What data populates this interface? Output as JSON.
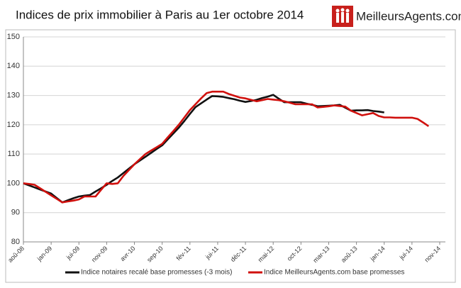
{
  "header": {
    "title": "Indices de prix immobilier à Paris au 1er octobre 2014",
    "logo": "MeilleursAgents.com"
  },
  "chart_data": {
    "type": "line",
    "categories": [
      "aoû-08",
      null,
      null,
      null,
      null,
      "jan-09",
      null,
      null,
      null,
      null,
      "jui-09",
      null,
      null,
      null,
      null,
      "nov-09",
      null,
      null,
      null,
      null,
      "avr-10",
      null,
      null,
      null,
      null,
      "sep-10",
      null,
      null,
      null,
      null,
      "fév-11",
      null,
      null,
      null,
      null,
      "jui-11",
      null,
      null,
      null,
      null,
      "déc-11",
      null,
      null,
      null,
      null,
      "mai-12",
      null,
      null,
      null,
      null,
      "oct-12",
      null,
      null,
      null,
      null,
      "mar-13",
      null,
      null,
      null,
      null,
      "aoû-13",
      null,
      null,
      null,
      null,
      "jan-14",
      null,
      null,
      null,
      null,
      "jui-14",
      null,
      null,
      null,
      null,
      "nov-14"
    ],
    "series": [
      {
        "name": "Indice notaires recalé base promesses (-3 mois)",
        "color": "#111111",
        "values": [
          100,
          99.3,
          98.6,
          97.9,
          97.2,
          96.5,
          95,
          93.5,
          94.2,
          94.9,
          95.5,
          95.8,
          96,
          97.2,
          98.3,
          99.5,
          100.8,
          102,
          103.5,
          105,
          106.5,
          107.8,
          109.1,
          110.4,
          111.7,
          113,
          115,
          117,
          119,
          121.3,
          123.7,
          126,
          127.3,
          128.6,
          129.8,
          129.7,
          129.5,
          129.1,
          128.7,
          128.2,
          127.8,
          128.1,
          128.5,
          129.1,
          129.6,
          130.2,
          128.9,
          127.7,
          127.7,
          127.7,
          127.7,
          127.2,
          126.8,
          126.3,
          126.4,
          126.5,
          126.6,
          126.8,
          125.8,
          124.8,
          124.9,
          124.9,
          125,
          124.7,
          124.5,
          124.2,
          null,
          null,
          null,
          null,
          null,
          null,
          null,
          null,
          null,
          null
        ]
      },
      {
        "name": "Indice MeilleursAgents.com base promesses",
        "color": "#d0100d",
        "values": [
          100,
          99.8,
          99.5,
          98.3,
          97.1,
          95.9,
          94.7,
          93.5,
          93.8,
          94.1,
          94.5,
          95.5,
          95.5,
          95.5,
          97.8,
          100,
          99.8,
          100,
          102.5,
          104.5,
          106.5,
          108.3,
          110,
          111.2,
          112.3,
          113.5,
          115.7,
          117.8,
          120,
          122.5,
          125,
          127,
          129,
          130.8,
          131.3,
          131.3,
          131.3,
          130.5,
          129.9,
          129.3,
          129,
          128.5,
          128,
          128.4,
          128.8,
          128.6,
          128.4,
          128,
          127.5,
          127,
          127,
          127,
          127,
          125.9,
          126.1,
          126.3,
          126.6,
          126.4,
          126.2,
          124.8,
          124,
          123.2,
          123.6,
          124,
          123,
          122.5,
          122.5,
          122.4,
          122.4,
          122.4,
          122.4,
          122,
          120.8,
          119.5,
          null,
          null
        ]
      }
    ],
    "ylim": [
      80,
      150
    ],
    "yticks": [
      80,
      90,
      100,
      110,
      120,
      130,
      140,
      150
    ],
    "grid": true
  }
}
